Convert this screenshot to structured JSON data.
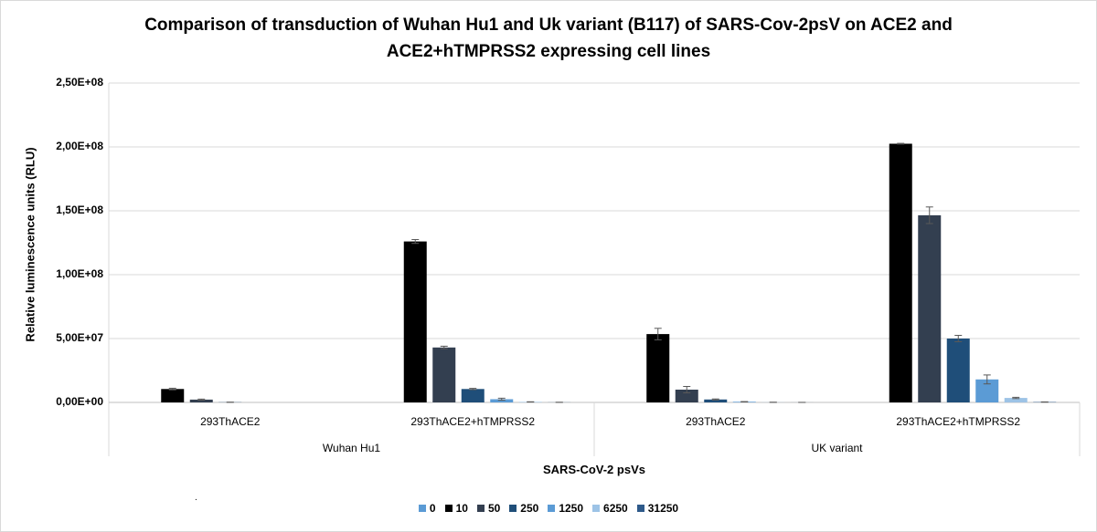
{
  "chart_data": {
    "type": "bar",
    "title": "Comparison of transduction of Wuhan Hu1 and Uk variant (B117) of SARS-Cov-2psV on ACE2 and ACE2+hTMPRSS2 expressing cell lines",
    "title_lines": [
      "Comparison of transduction of Wuhan Hu1 and Uk variant (B117) of SARS-Cov-2psV on ACE2 and",
      "ACE2+hTMPRSS2 expressing cell lines"
    ],
    "xlabel": "SARS-CoV-2 psVs",
    "ylabel": "Relative luminescence units (RLU)",
    "ylim": [
      0,
      250000000
    ],
    "yticks": [
      0,
      50000000,
      100000000,
      150000000,
      200000000,
      250000000
    ],
    "ytick_labels": [
      "0,00E+00",
      "5,00E+07",
      "1,00E+08",
      "1,50E+08",
      "2,00E+08",
      "2,50E+08"
    ],
    "grid": true,
    "legend_position": "bottom",
    "groups": [
      "Wuhan Hu1",
      "UK variant"
    ],
    "categories": [
      "293ThACE2",
      "293ThACE2+hTMPRSS2",
      "293ThACE2",
      "293ThACE2+hTMPRSS2"
    ],
    "series": [
      {
        "name": "0",
        "color": "#5b9bd5",
        "values": [
          0,
          0,
          0,
          0
        ],
        "errors": [
          0,
          0,
          0,
          0
        ]
      },
      {
        "name": "10",
        "color": "#000000",
        "values": [
          10500000,
          126000000,
          53500000,
          202500000
        ],
        "errors": [
          600000,
          1500000,
          4500000,
          300000
        ]
      },
      {
        "name": "50",
        "color": "#333f50",
        "values": [
          2200000,
          43000000,
          10000000,
          146500000
        ],
        "errors": [
          400000,
          1000000,
          2500000,
          6500000
        ]
      },
      {
        "name": "250",
        "color": "#1f4e79",
        "values": [
          150000,
          10500000,
          2300000,
          50000000
        ],
        "errors": [
          50000,
          500000,
          400000,
          2500000
        ]
      },
      {
        "name": "1250",
        "color": "#5b9bd5",
        "values": [
          0,
          2500000,
          500000,
          18000000
        ],
        "errors": [
          0,
          800000,
          150000,
          3500000
        ]
      },
      {
        "name": "6250",
        "color": "#9dc3e6",
        "values": [
          0,
          400000,
          100000,
          3500000
        ],
        "errors": [
          0,
          100000,
          50000,
          500000
        ]
      },
      {
        "name": "31250",
        "color": "#2e5a8a",
        "values": [
          0,
          80000,
          30000,
          300000
        ],
        "errors": [
          0,
          30000,
          20000,
          100000
        ]
      }
    ],
    "stray_mark": "."
  }
}
